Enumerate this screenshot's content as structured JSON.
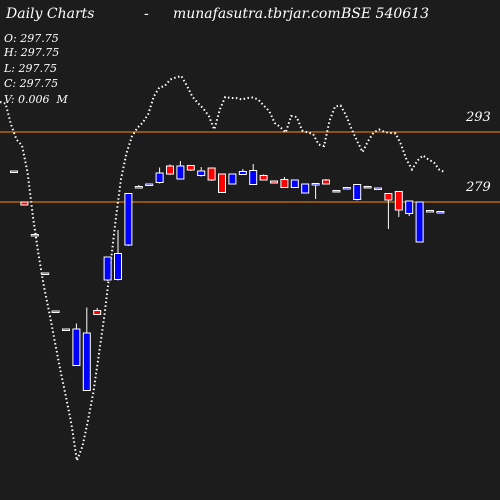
{
  "header": {
    "title": "Daily Charts",
    "dash": "-",
    "site": "munafasutra.tbrjar.com",
    "symbol": "BSE 540613"
  },
  "ohlc": {
    "open": "O: 297.75",
    "high": "H: 297.75",
    "low": "L: 297.75",
    "close": "C: 297.75",
    "volume": "V: 0.006  M"
  },
  "colors": {
    "background": "#1c1c1c",
    "up": "#ffffff",
    "down_red": "#ff0000",
    "down_blue": "#0000ff",
    "level_line": "#ff8c00",
    "text": "#ffffff",
    "dotted": "#ffffff"
  },
  "chart_data": {
    "type": "candlestick",
    "levels": [
      {
        "label": "293",
        "value": 293
      },
      {
        "label": "279",
        "value": 279
      }
    ],
    "ylim": [
      223,
      307
    ],
    "candles": [
      {
        "o": 285.2,
        "h": 285.2,
        "c": 285.0,
        "l": 285.0,
        "color": "blue"
      },
      {
        "o": 279.0,
        "h": 279.0,
        "c": 278.4,
        "l": 278.4,
        "color": "red"
      },
      {
        "o": 272.5,
        "h": 272.5,
        "c": 272.3,
        "l": 272.3,
        "color": "blue"
      },
      {
        "o": 264.8,
        "h": 264.8,
        "c": 264.6,
        "l": 264.6,
        "color": "blue"
      },
      {
        "o": 257.2,
        "h": 257.2,
        "c": 257.0,
        "l": 257.0,
        "color": "blue"
      },
      {
        "o": 253.6,
        "h": 253.6,
        "c": 253.4,
        "l": 253.4,
        "color": "blue"
      },
      {
        "o": 253.6,
        "h": 254.7,
        "c": 246.3,
        "l": 246.3,
        "color": "blue"
      },
      {
        "o": 252.8,
        "h": 257.9,
        "c": 241.3,
        "l": 241.3,
        "color": "blue"
      },
      {
        "o": 257.3,
        "h": 257.8,
        "c": 256.5,
        "l": 256.5,
        "color": "red"
      },
      {
        "o": 268.0,
        "h": 268.0,
        "c": 263.4,
        "l": 263.2,
        "color": "blue"
      },
      {
        "o": 268.7,
        "h": 273.4,
        "c": 263.5,
        "l": 263.3,
        "color": "blue"
      },
      {
        "o": 280.7,
        "h": 280.7,
        "c": 270.4,
        "l": 270.2,
        "color": "blue"
      },
      {
        "o": 282.1,
        "h": 282.4,
        "c": 281.9,
        "l": 281.7,
        "color": "blue"
      },
      {
        "o": 282.6,
        "h": 282.6,
        "c": 282.4,
        "l": 282.2,
        "color": "blue"
      },
      {
        "o": 284.8,
        "h": 285.9,
        "c": 282.9,
        "l": 282.7,
        "color": "blue"
      },
      {
        "o": 286.2,
        "h": 286.5,
        "c": 284.6,
        "l": 284.4,
        "color": "red"
      },
      {
        "o": 286.2,
        "h": 287.2,
        "c": 283.6,
        "l": 283.6,
        "color": "blue"
      },
      {
        "o": 286.3,
        "h": 286.3,
        "c": 285.4,
        "l": 285.2,
        "color": "red"
      },
      {
        "o": 285.2,
        "h": 286.0,
        "c": 284.3,
        "l": 284.1,
        "color": "blue"
      },
      {
        "o": 285.8,
        "h": 285.8,
        "c": 283.4,
        "l": 283.2,
        "color": "red"
      },
      {
        "o": 284.6,
        "h": 284.6,
        "c": 280.9,
        "l": 280.9,
        "color": "red"
      },
      {
        "o": 284.6,
        "h": 284.6,
        "c": 282.6,
        "l": 282.6,
        "color": "blue"
      },
      {
        "o": 285.1,
        "h": 285.6,
        "c": 284.5,
        "l": 284.5,
        "color": "blue"
      },
      {
        "o": 285.3,
        "h": 286.6,
        "c": 282.5,
        "l": 282.5,
        "color": "blue"
      },
      {
        "o": 284.3,
        "h": 284.5,
        "c": 283.4,
        "l": 283.4,
        "color": "red"
      },
      {
        "o": 283.2,
        "h": 283.2,
        "c": 282.8,
        "l": 282.8,
        "color": "red"
      },
      {
        "o": 283.5,
        "h": 284.0,
        "c": 281.9,
        "l": 281.9,
        "color": "red"
      },
      {
        "o": 283.4,
        "h": 283.4,
        "c": 281.9,
        "l": 281.9,
        "color": "blue"
      },
      {
        "o": 282.6,
        "h": 282.6,
        "c": 280.8,
        "l": 280.8,
        "color": "blue"
      },
      {
        "o": 282.7,
        "h": 282.8,
        "c": 282.4,
        "l": 279.6,
        "color": "blue"
      },
      {
        "o": 283.4,
        "h": 283.6,
        "c": 282.6,
        "l": 282.6,
        "color": "red"
      },
      {
        "o": 281.3,
        "h": 281.3,
        "c": 281.1,
        "l": 281.1,
        "color": "red"
      },
      {
        "o": 281.9,
        "h": 281.9,
        "c": 281.7,
        "l": 281.7,
        "color": "blue"
      },
      {
        "o": 282.5,
        "h": 282.5,
        "c": 279.5,
        "l": 279.3,
        "color": "blue"
      },
      {
        "o": 282.1,
        "h": 282.1,
        "c": 281.9,
        "l": 281.9,
        "color": "red"
      },
      {
        "o": 281.8,
        "h": 281.8,
        "c": 281.6,
        "l": 281.6,
        "color": "blue"
      },
      {
        "o": 280.7,
        "h": 280.7,
        "c": 279.4,
        "l": 273.6,
        "color": "red"
      },
      {
        "o": 281.1,
        "h": 281.1,
        "c": 277.4,
        "l": 276.0,
        "color": "red"
      },
      {
        "o": 279.2,
        "h": 279.2,
        "c": 276.7,
        "l": 276.2,
        "color": "blue"
      },
      {
        "o": 279.0,
        "h": 279.0,
        "c": 271.0,
        "l": 271.0,
        "color": "blue"
      },
      {
        "o": 277.3,
        "h": 277.3,
        "c": 277.1,
        "l": 277.1,
        "color": "blue"
      },
      {
        "o": 277.1,
        "h": 277.1,
        "c": 276.9,
        "l": 276.9,
        "color": "blue"
      }
    ],
    "moving_average": [
      299.0,
      298.7,
      294.5,
      291.5,
      290.3,
      285.0,
      276.0,
      268.5,
      262.0,
      256.8,
      251.0,
      245.3,
      240.1,
      234.6,
      227.3,
      230.1,
      235.2,
      241.0,
      248.5,
      256.3,
      265.4,
      275.0,
      283.5,
      288.7,
      292.1,
      293.8,
      294.9,
      296.6,
      300.1,
      301.9,
      302.2,
      303.5,
      303.9,
      304.2,
      302.3,
      300.1,
      298.8,
      297.7,
      296.2,
      293.5,
      297.5,
      300.0,
      299.8,
      299.8,
      299.5,
      299.8,
      299.9,
      299.5,
      298.3,
      297.2,
      294.8,
      294.0,
      292.9,
      296.2,
      296.0,
      293.3,
      292.9,
      292.6,
      290.5,
      290.2,
      295.3,
      298.1,
      298.3,
      296.3,
      293.6,
      291.2,
      289.0,
      291.2,
      292.9,
      293.5,
      293.0,
      292.8,
      292.7,
      290.5,
      287.5,
      285.5,
      287.3,
      288.3,
      287.5,
      286.9,
      285.4,
      285.0
    ]
  }
}
